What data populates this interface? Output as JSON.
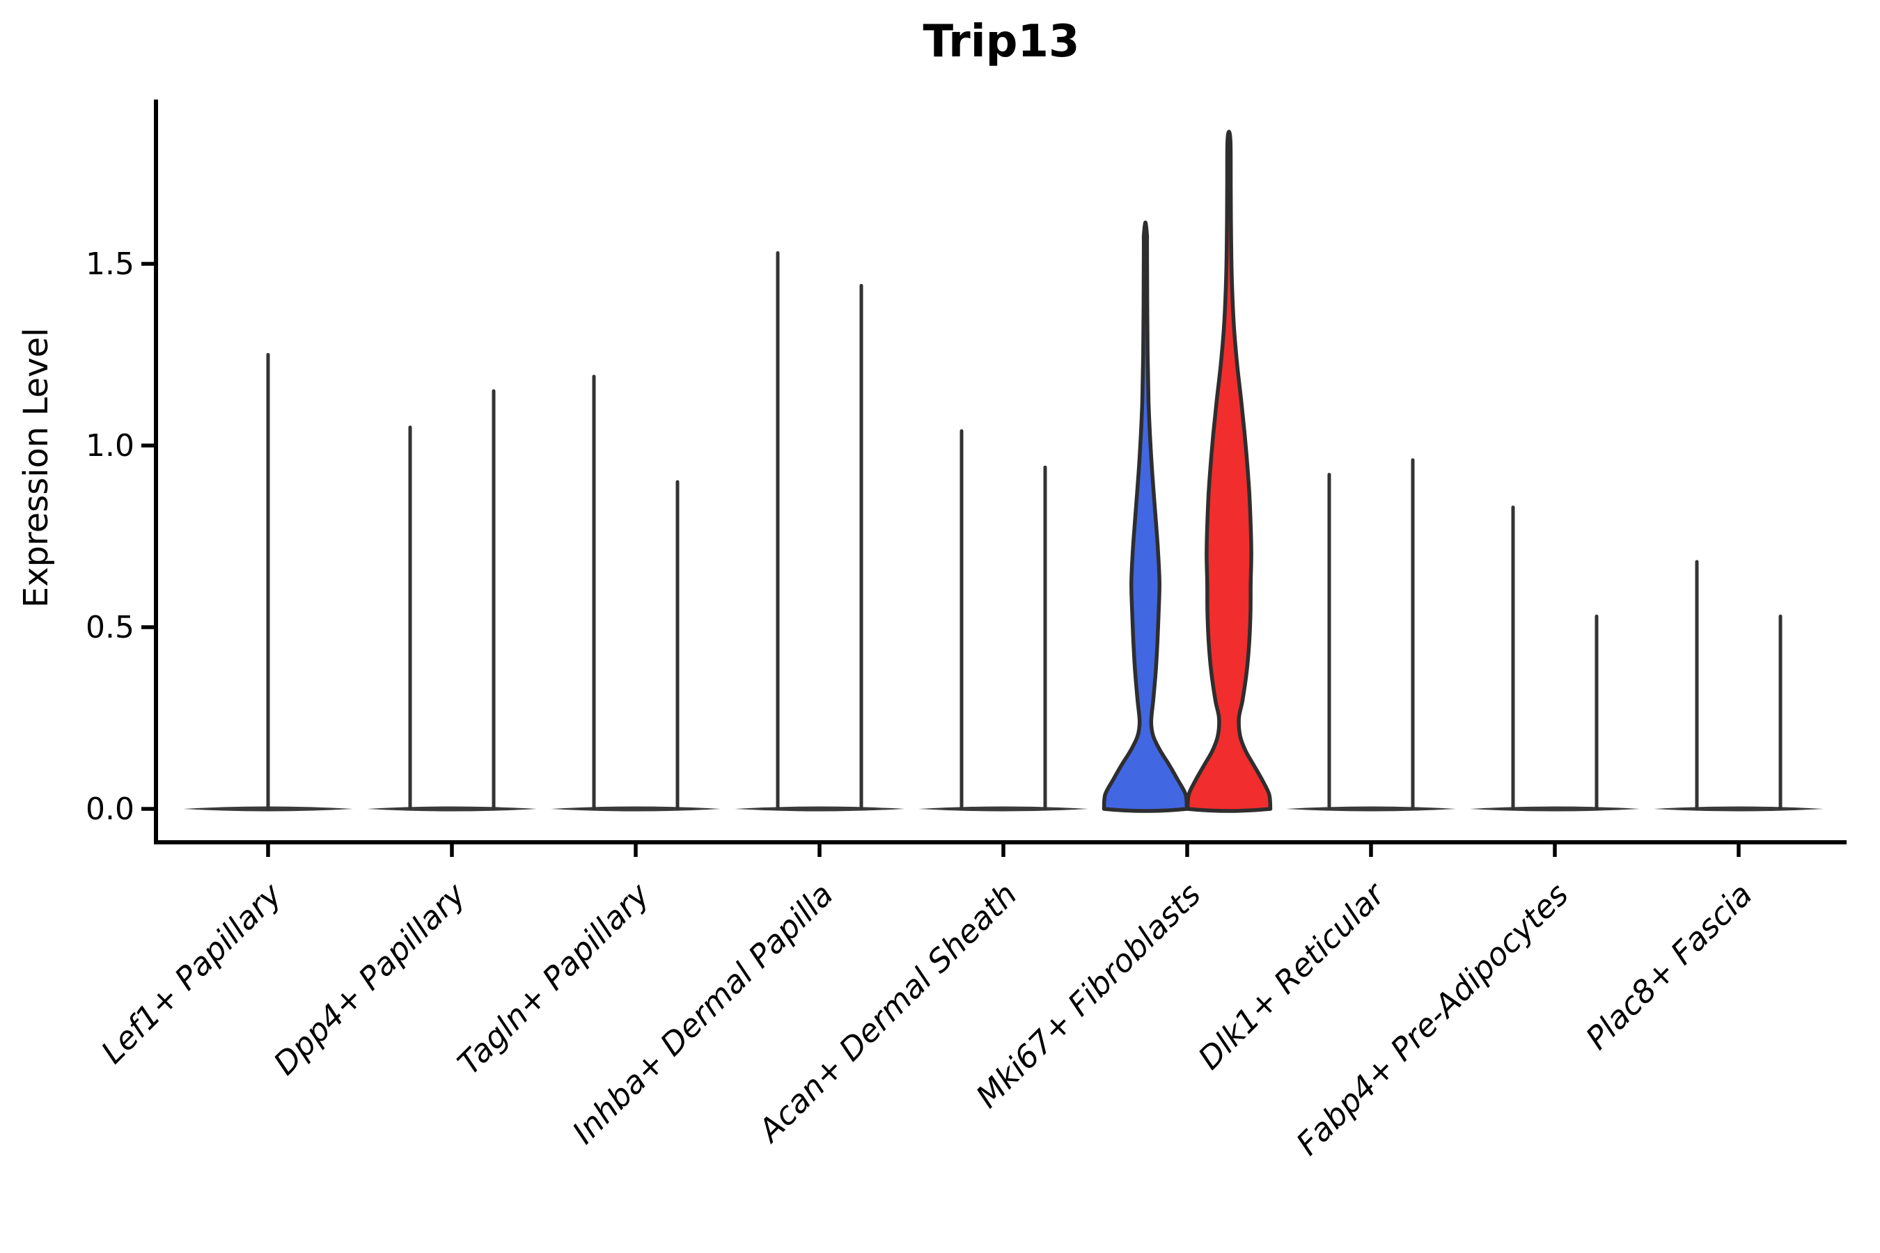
{
  "chart_data": {
    "type": "violin",
    "title": "Trip13",
    "ylabel": "Expression Level",
    "xlabel": "",
    "ylim": [
      -0.09,
      1.95
    ],
    "yticks": [
      {
        "value": 0.0,
        "label": "0.0"
      },
      {
        "value": 0.5,
        "label": "0.5"
      },
      {
        "value": 1.0,
        "label": "1.0"
      },
      {
        "value": 1.5,
        "label": "1.5"
      }
    ],
    "grid": false,
    "legend": "none",
    "style_notes": {
      "violin_outline_color": "#2e2e2e",
      "spike_color": "#333333",
      "baseline_color": "#3a3a3a",
      "highlight_blue": "#4267E2",
      "highlight_red": "#F12D2D",
      "axis_color": "#000000"
    },
    "groups": [
      {
        "label": "Lef1+ Papillary",
        "violins": [
          {
            "position": "center",
            "max_expression": 1.25,
            "style": "collapsed-spike",
            "fill": null
          }
        ]
      },
      {
        "label": "Dpp4+ Papillary",
        "violins": [
          {
            "position": "left",
            "max_expression": 1.05,
            "style": "collapsed-spike",
            "fill": null
          },
          {
            "position": "right",
            "max_expression": 1.15,
            "style": "collapsed-spike",
            "fill": null
          }
        ]
      },
      {
        "label": "Tagln+ Papillary",
        "violins": [
          {
            "position": "left",
            "max_expression": 1.19,
            "style": "collapsed-spike",
            "fill": null
          },
          {
            "position": "right",
            "max_expression": 0.9,
            "style": "collapsed-spike",
            "fill": null
          }
        ]
      },
      {
        "label": "Inhba+ Dermal Papilla",
        "violins": [
          {
            "position": "left",
            "max_expression": 1.53,
            "style": "collapsed-spike",
            "fill": null
          },
          {
            "position": "right",
            "max_expression": 1.44,
            "style": "collapsed-spike",
            "fill": null
          }
        ]
      },
      {
        "label": "Acan+ Dermal Sheath",
        "violins": [
          {
            "position": "left",
            "max_expression": 1.04,
            "style": "collapsed-spike",
            "fill": null
          },
          {
            "position": "right",
            "max_expression": 0.94,
            "style": "collapsed-spike",
            "fill": null
          }
        ]
      },
      {
        "label": "Mki67+ Fibroblasts",
        "violins": [
          {
            "position": "left",
            "max_expression": 1.61,
            "style": "density",
            "fill": "#4267E2",
            "profile": [
              [
                0.0,
                1.0
              ],
              [
                0.04,
                0.97
              ],
              [
                0.08,
                0.78
              ],
              [
                0.12,
                0.58
              ],
              [
                0.16,
                0.36
              ],
              [
                0.2,
                0.19
              ],
              [
                0.24,
                0.14
              ],
              [
                0.3,
                0.19
              ],
              [
                0.38,
                0.25
              ],
              [
                0.46,
                0.29
              ],
              [
                0.54,
                0.32
              ],
              [
                0.62,
                0.34
              ],
              [
                0.7,
                0.31
              ],
              [
                0.78,
                0.26
              ],
              [
                0.87,
                0.2
              ],
              [
                0.95,
                0.15
              ],
              [
                1.03,
                0.11
              ],
              [
                1.12,
                0.076
              ],
              [
                1.25,
                0.054
              ],
              [
                1.4,
                0.044
              ],
              [
                1.55,
                0.039
              ],
              [
                1.58,
                0.037
              ]
            ]
          },
          {
            "position": "right",
            "max_expression": 1.86,
            "style": "density",
            "fill": "#F12D2D",
            "profile": [
              [
                0.0,
                1.0
              ],
              [
                0.04,
                0.97
              ],
              [
                0.08,
                0.8
              ],
              [
                0.12,
                0.6
              ],
              [
                0.16,
                0.4
              ],
              [
                0.2,
                0.27
              ],
              [
                0.25,
                0.24
              ],
              [
                0.3,
                0.33
              ],
              [
                0.38,
                0.43
              ],
              [
                0.46,
                0.49
              ],
              [
                0.54,
                0.52
              ],
              [
                0.62,
                0.525
              ],
              [
                0.7,
                0.54
              ],
              [
                0.78,
                0.525
              ],
              [
                0.87,
                0.49
              ],
              [
                0.95,
                0.44
              ],
              [
                1.03,
                0.38
              ],
              [
                1.12,
                0.3
              ],
              [
                1.22,
                0.2
              ],
              [
                1.32,
                0.125
              ],
              [
                1.42,
                0.08
              ],
              [
                1.55,
                0.053
              ],
              [
                1.7,
                0.043
              ],
              [
                1.83,
                0.038
              ]
            ]
          }
        ]
      },
      {
        "label": "Dlk1+ Reticular",
        "violins": [
          {
            "position": "left",
            "max_expression": 0.92,
            "style": "collapsed-spike",
            "fill": null
          },
          {
            "position": "right",
            "max_expression": 0.96,
            "style": "collapsed-spike",
            "fill": null
          }
        ]
      },
      {
        "label": "Fabp4+ Pre-Adipocytes",
        "violins": [
          {
            "position": "left",
            "max_expression": 0.83,
            "style": "collapsed-spike",
            "fill": null
          },
          {
            "position": "right",
            "max_expression": 0.53,
            "style": "collapsed-spike",
            "fill": null
          }
        ]
      },
      {
        "label": "Plac8+ Fascia",
        "violins": [
          {
            "position": "left",
            "max_expression": 0.68,
            "style": "collapsed-spike",
            "fill": null
          },
          {
            "position": "right",
            "max_expression": 0.53,
            "style": "collapsed-spike",
            "fill": null
          }
        ]
      }
    ]
  }
}
